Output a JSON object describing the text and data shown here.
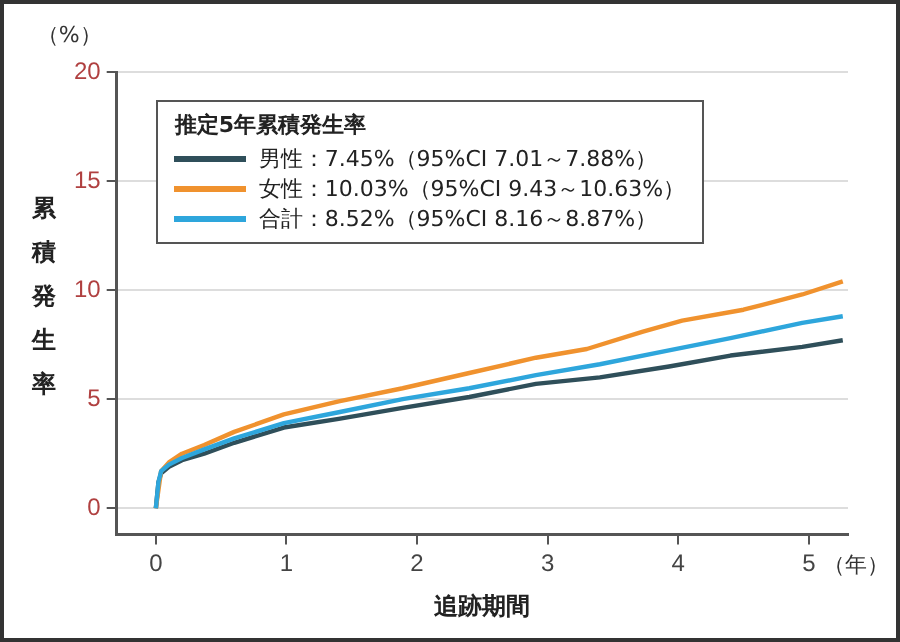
{
  "chart_data": {
    "type": "line",
    "xlabel": "追跡期間",
    "ylabel": "累積発生率",
    "legend_title": "推定5年累積発生率",
    "legend": "top left",
    "grid": "y",
    "marker": "none",
    "line_style": "solid",
    "xlim": [
      -0.3,
      5.3
    ],
    "xticks": [
      0,
      1,
      2,
      3,
      4,
      5
    ],
    "ylim": [
      -1.2,
      20
    ],
    "yticks": [
      0,
      5,
      10,
      15,
      20
    ],
    "annotations": [
      "（%）",
      "（年）"
    ],
    "series": [
      {
        "name": "男性：7.45%（95%CI 7.01～7.88%）",
        "color": "#2f4f5a",
        "x": [
          0,
          0.02,
          0.04,
          0.1,
          0.2,
          0.37,
          0.6,
          0.98,
          1.4,
          1.89,
          2.4,
          2.91,
          3.4,
          3.93,
          4.4,
          4.95,
          5.26
        ],
        "values": [
          0,
          1.2,
          1.6,
          1.9,
          2.2,
          2.5,
          3,
          3.7,
          4.1,
          4.6,
          5.1,
          5.7,
          6,
          6.5,
          7,
          7.4,
          7.7
        ]
      },
      {
        "name": "女性：10.03%（95%CI 9.43～10.63%）",
        "color": "#f0922e",
        "x": [
          0,
          0.04,
          0.1,
          0.2,
          0.37,
          0.6,
          0.98,
          1.4,
          1.89,
          2.4,
          2.91,
          3.3,
          3.73,
          4.03,
          4.5,
          4.95,
          5.26
        ],
        "values": [
          0,
          1.7,
          2.1,
          2.5,
          2.9,
          3.5,
          4.3,
          4.9,
          5.5,
          6.2,
          6.9,
          7.3,
          8.1,
          8.6,
          9.1,
          9.8,
          10.4
        ]
      },
      {
        "name": "合計：8.52%（95%CI 8.16～8.87%）",
        "color": "#2ea6dc",
        "x": [
          0,
          0.02,
          0.04,
          0.1,
          0.2,
          0.37,
          0.6,
          0.98,
          1.4,
          1.89,
          2.4,
          2.91,
          3.4,
          3.9,
          4.4,
          4.95,
          5.26
        ],
        "values": [
          0,
          1.2,
          1.7,
          2,
          2.3,
          2.7,
          3.2,
          3.9,
          4.4,
          5,
          5.5,
          6.1,
          6.6,
          7.2,
          7.8,
          8.5,
          8.8
        ]
      }
    ]
  }
}
